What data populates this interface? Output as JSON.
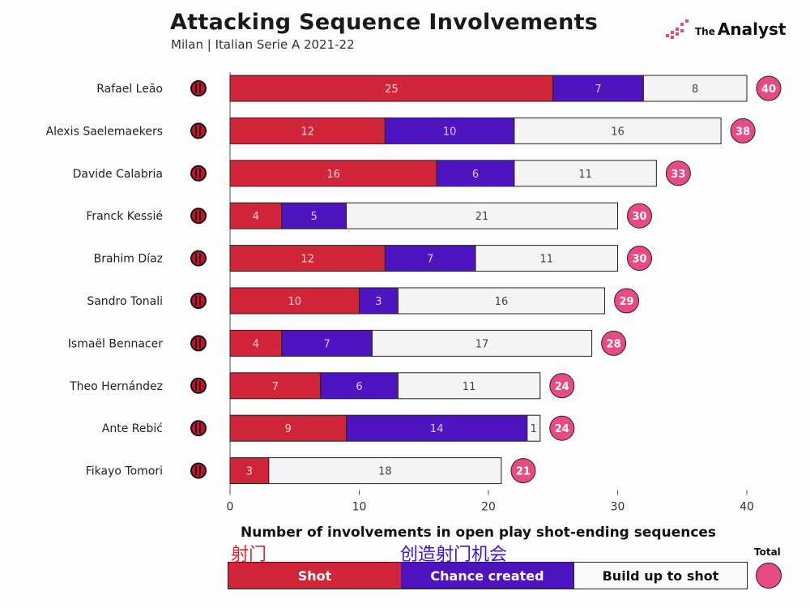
{
  "header": {
    "title": "Attacking Sequence Involvements",
    "subtitle": "Milan | Italian Serie A 2021-22",
    "brand_prefix": "The",
    "brand_name": "Analyst"
  },
  "colors": {
    "shot": "#d1263a",
    "chance_created": "#4e14c0",
    "build_up": "#f4f4f6",
    "total": "#ea4a84"
  },
  "legend": {
    "shot": "Shot",
    "chance_created": "Chance created",
    "build_up": "Build up to shot",
    "total": "Total"
  },
  "annotations": {
    "shot_cn": "射门",
    "chance_cn": "创造射门机会"
  },
  "chart_data": {
    "type": "bar",
    "orientation": "horizontal",
    "stacked": true,
    "categories": [
      "Rafael Leão",
      "Alexis Saelemaekers",
      "Davide Calabria",
      "Franck Kessié",
      "Brahim Díaz",
      "Sandro Tonali",
      "Ismaël Bennacer",
      "Theo Hernández",
      "Ante Rebić",
      "Fikayo Tomori"
    ],
    "series": [
      {
        "name": "Shot",
        "values": [
          25,
          12,
          16,
          4,
          12,
          10,
          4,
          7,
          9,
          3
        ]
      },
      {
        "name": "Chance created",
        "values": [
          7,
          10,
          6,
          5,
          7,
          3,
          7,
          6,
          14,
          0
        ]
      },
      {
        "name": "Build up to shot",
        "values": [
          8,
          16,
          11,
          21,
          11,
          16,
          17,
          11,
          1,
          18
        ]
      }
    ],
    "totals": [
      40,
      38,
      33,
      30,
      30,
      29,
      28,
      24,
      24,
      21
    ],
    "xlabel": "Number of involvements in open play shot-ending sequences",
    "xticks": [
      0,
      10,
      20,
      30,
      40
    ],
    "xlim": [
      0,
      40
    ]
  }
}
